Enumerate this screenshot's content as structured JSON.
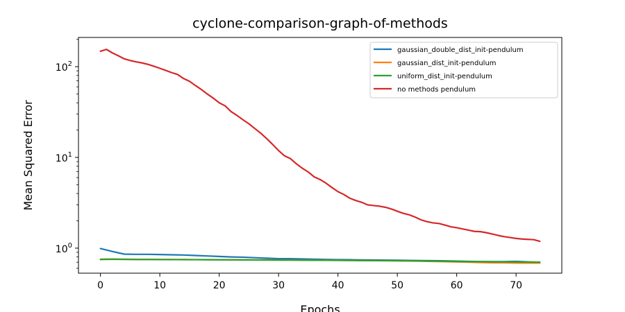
{
  "chart_data": {
    "type": "line",
    "title": "cyclone-comparison-graph-of-methods",
    "xlabel": "Epochs",
    "ylabel": "Mean Squared Error",
    "yscale": "log",
    "xlim": [
      -3.7,
      77.7
    ],
    "ylim": [
      0.53,
      210
    ],
    "xticks": [
      0,
      10,
      20,
      30,
      40,
      50,
      60,
      70
    ],
    "xtick_labels": [
      "0",
      "10",
      "20",
      "30",
      "40",
      "50",
      "60",
      "70"
    ],
    "yticks": [
      {
        "value": 1,
        "base": "10",
        "exp": "0"
      },
      {
        "value": 10,
        "base": "10",
        "exp": "1"
      },
      {
        "value": 100,
        "base": "10",
        "exp": "2"
      }
    ],
    "grid": false,
    "legend_position": "upper right",
    "series": [
      {
        "name": "gaussian_double_dist_init-pendulum",
        "color": "#1f77b4",
        "x": [
          0,
          2,
          4,
          6,
          8,
          10,
          12,
          14,
          16,
          18,
          20,
          22,
          24,
          26,
          28,
          30,
          32,
          34,
          36,
          38,
          40,
          42,
          44,
          46,
          48,
          50,
          52,
          54,
          56,
          58,
          60,
          62,
          64,
          66,
          68,
          70,
          72,
          74
        ],
        "y": [
          0.99,
          0.92,
          0.86,
          0.855,
          0.855,
          0.85,
          0.845,
          0.84,
          0.83,
          0.82,
          0.81,
          0.8,
          0.795,
          0.785,
          0.775,
          0.765,
          0.765,
          0.76,
          0.755,
          0.75,
          0.748,
          0.745,
          0.743,
          0.74,
          0.738,
          0.735,
          0.733,
          0.73,
          0.728,
          0.725,
          0.72,
          0.715,
          0.71,
          0.71,
          0.71,
          0.715,
          0.705,
          0.7
        ]
      },
      {
        "name": "gaussian_dist_init-pendulum",
        "color": "#ff7f0e",
        "x": [
          0,
          2,
          4,
          6,
          8,
          10,
          12,
          14,
          16,
          18,
          20,
          22,
          24,
          26,
          28,
          30,
          32,
          34,
          36,
          38,
          40,
          42,
          44,
          46,
          48,
          50,
          52,
          54,
          56,
          58,
          60,
          62,
          64,
          66,
          68,
          70,
          72,
          74
        ],
        "y": [
          0.755,
          0.757,
          0.755,
          0.753,
          0.752,
          0.751,
          0.75,
          0.749,
          0.748,
          0.747,
          0.746,
          0.745,
          0.744,
          0.743,
          0.742,
          0.741,
          0.74,
          0.739,
          0.738,
          0.737,
          0.735,
          0.733,
          0.731,
          0.729,
          0.727,
          0.725,
          0.722,
          0.72,
          0.715,
          0.71,
          0.705,
          0.7,
          0.695,
          0.69,
          0.69,
          0.685,
          0.685,
          0.685
        ]
      },
      {
        "name": "uniform_dist_init-pendulum",
        "color": "#2ca02c",
        "x": [
          0,
          2,
          4,
          6,
          8,
          10,
          12,
          14,
          16,
          18,
          20,
          22,
          24,
          26,
          28,
          30,
          32,
          34,
          36,
          38,
          40,
          42,
          44,
          46,
          48,
          50,
          52,
          54,
          56,
          58,
          60,
          62,
          64,
          66,
          68,
          70,
          72,
          74
        ],
        "y": [
          0.75,
          0.755,
          0.752,
          0.75,
          0.75,
          0.749,
          0.748,
          0.747,
          0.746,
          0.745,
          0.744,
          0.743,
          0.742,
          0.741,
          0.74,
          0.739,
          0.738,
          0.737,
          0.736,
          0.735,
          0.733,
          0.732,
          0.731,
          0.73,
          0.729,
          0.727,
          0.725,
          0.722,
          0.72,
          0.718,
          0.715,
          0.712,
          0.71,
          0.708,
          0.706,
          0.705,
          0.703,
          0.7
        ]
      },
      {
        "name": "no methods pendulum",
        "color": "#d62728",
        "x": [
          0,
          1,
          2,
          3,
          4,
          5,
          6,
          7,
          8,
          9,
          10,
          11,
          12,
          13,
          14,
          15,
          16,
          17,
          18,
          19,
          20,
          21,
          22,
          23,
          24,
          25,
          26,
          27,
          28,
          29,
          30,
          31,
          32,
          33,
          34,
          35,
          36,
          37,
          38,
          39,
          40,
          41,
          42,
          43,
          44,
          45,
          46,
          47,
          48,
          49,
          50,
          51,
          52,
          53,
          54,
          55,
          56,
          57,
          58,
          59,
          60,
          61,
          62,
          63,
          64,
          65,
          66,
          67,
          68,
          69,
          70,
          71,
          72,
          73,
          74
        ],
        "y": [
          148,
          155,
          142,
          132,
          122,
          117,
          113,
          110,
          106,
          101,
          96,
          91,
          86,
          82,
          74,
          69,
          62,
          56,
          50,
          45,
          40,
          37,
          32,
          29,
          26,
          23.5,
          20.8,
          18.5,
          16.1,
          13.9,
          11.9,
          10.4,
          9.7,
          8.5,
          7.6,
          6.9,
          6.1,
          5.7,
          5.2,
          4.65,
          4.2,
          3.9,
          3.55,
          3.35,
          3.2,
          3.0,
          2.95,
          2.9,
          2.82,
          2.7,
          2.55,
          2.42,
          2.33,
          2.2,
          2.05,
          1.96,
          1.9,
          1.87,
          1.8,
          1.72,
          1.68,
          1.63,
          1.58,
          1.53,
          1.52,
          1.48,
          1.43,
          1.38,
          1.34,
          1.31,
          1.28,
          1.26,
          1.25,
          1.24,
          1.19
        ]
      }
    ]
  }
}
